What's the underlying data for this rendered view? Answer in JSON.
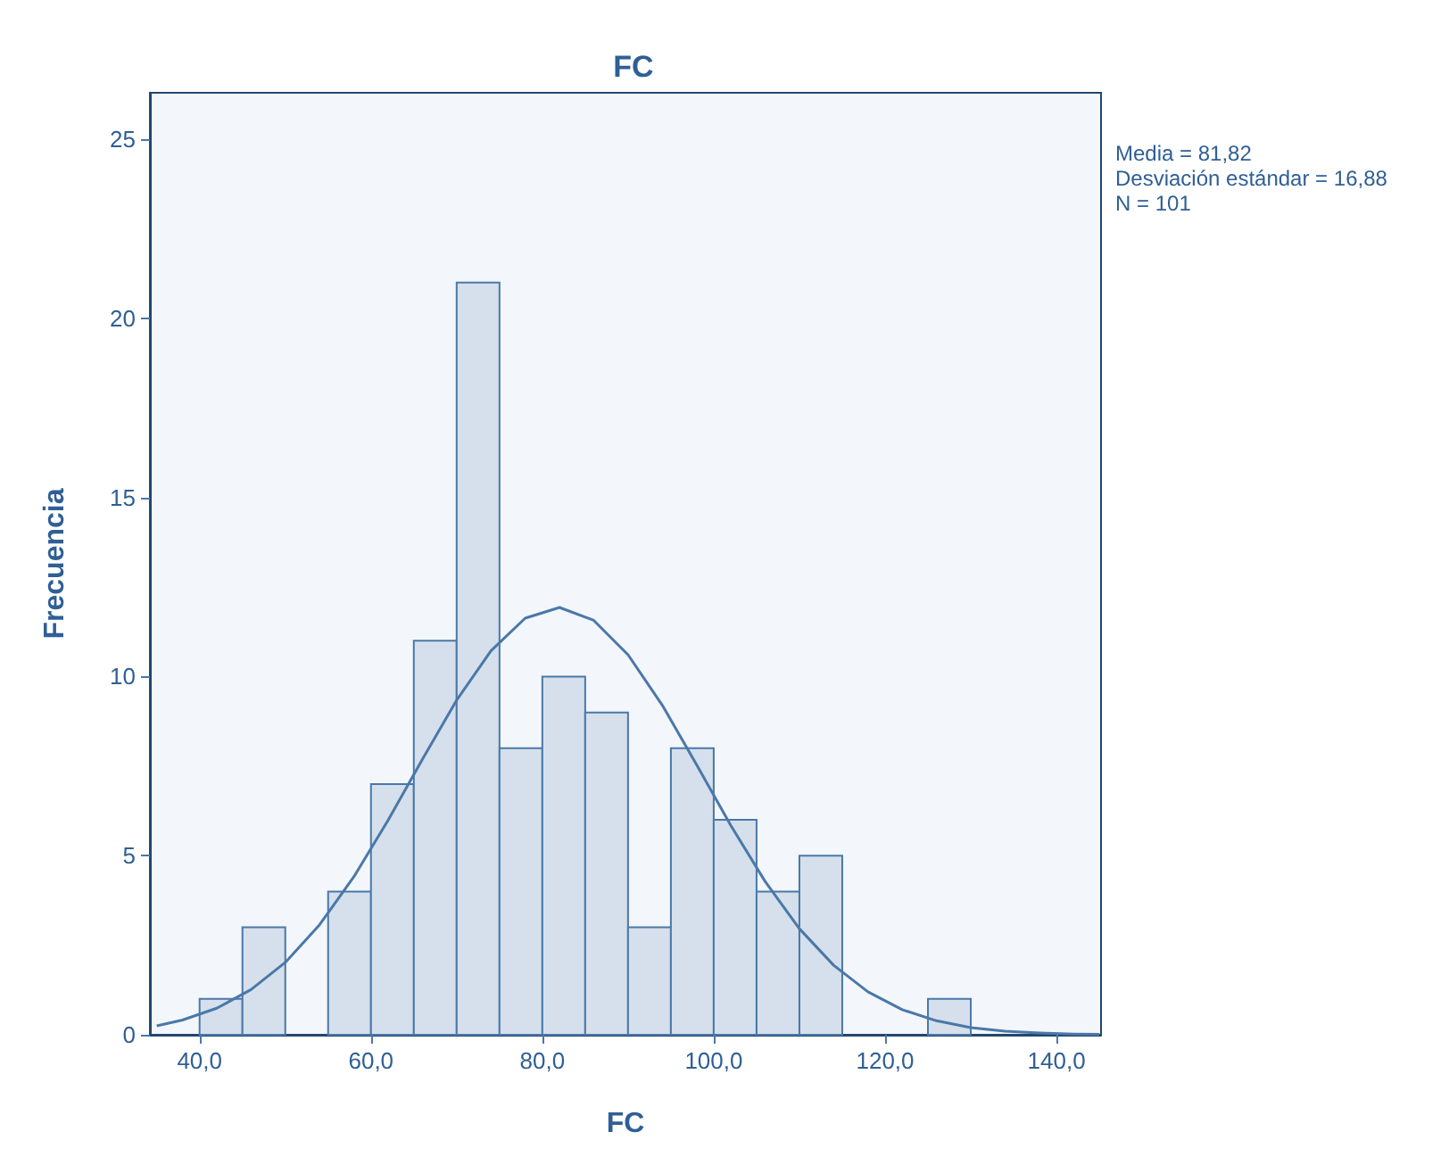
{
  "chart_data": {
    "type": "histogram",
    "title": "FC",
    "xlabel": "FC",
    "ylabel": "Frecuencia",
    "annotations": [
      "Media = 81,82",
      "Desviación estándar = 16,88",
      "N = 101"
    ],
    "bins": [
      40,
      45,
      50,
      55,
      60,
      65,
      70,
      75,
      80,
      85,
      90,
      95,
      100,
      105,
      110,
      115,
      120,
      125,
      130
    ],
    "values": [
      1,
      3,
      0,
      4,
      7,
      11,
      21,
      8,
      10,
      9,
      3,
      8,
      6,
      4,
      5,
      0,
      0,
      1
    ],
    "color": "#d5e0ec",
    "series": [
      {
        "type": "line",
        "color": "#4a78a8",
        "x": [
          35,
          38,
          42,
          46,
          50,
          54,
          58,
          62,
          66,
          70,
          74,
          78,
          82,
          86,
          90,
          94,
          98,
          102,
          106,
          110,
          114,
          118,
          122,
          126,
          130,
          134,
          138,
          142,
          145
        ],
        "values": [
          0.25,
          0.41,
          0.74,
          1.26,
          2.02,
          3.07,
          4.41,
          5.99,
          7.69,
          9.34,
          10.72,
          11.63,
          11.93,
          11.57,
          10.61,
          9.2,
          7.54,
          5.84,
          4.28,
          2.96,
          1.94,
          1.2,
          0.7,
          0.39,
          0.2,
          0.1,
          0.05,
          0.02,
          0.01
        ]
      }
    ],
    "xlim": [
      34.2,
      145.2
    ],
    "ylim": [
      0,
      26.3
    ],
    "xticks": [
      {
        "value": 40,
        "label": "40,0"
      },
      {
        "value": 60,
        "label": "60,0"
      },
      {
        "value": 80,
        "label": "80,0"
      },
      {
        "value": 100,
        "label": "100,0"
      },
      {
        "value": 120,
        "label": "120,0"
      },
      {
        "value": 140,
        "label": "140,0"
      }
    ],
    "yticks": [
      0,
      5,
      10,
      15,
      20,
      25
    ],
    "grid": false
  }
}
